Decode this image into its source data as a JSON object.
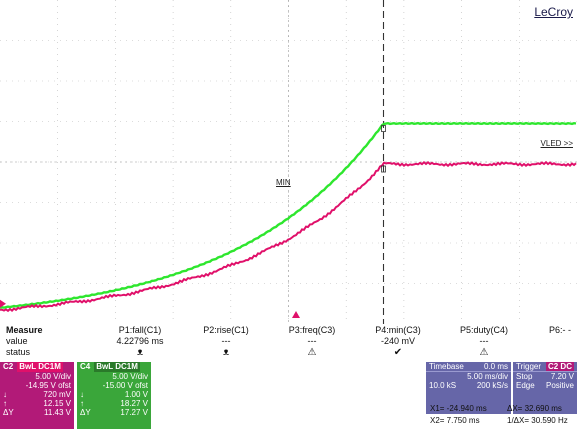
{
  "brand": "LeCroy",
  "annotations": {
    "vled_label": "VLED >>",
    "min_label": "MIN"
  },
  "colors": {
    "c1_green": "#2ee62e",
    "c2_magenta": "#e0106a",
    "c2_panel": "#b21a78",
    "c4_panel": "#3aa63a",
    "timebase_panel": "#6666a8",
    "grid": "#b9b9b9"
  },
  "traces": [
    {
      "channel": "C1",
      "color": "#2ee62e",
      "shape": "rising exponential to clamp then flat",
      "start_level_div": -3.6,
      "end_level_div": 0.95
    },
    {
      "channel": "C2",
      "color": "#e0106a",
      "shape": "rising exponential to clamp then flat",
      "start_level_div": -3.65,
      "end_level_div": -0.05
    }
  ],
  "measure": {
    "row_labels": [
      "Measure",
      "value",
      "status"
    ],
    "columns": [
      {
        "param": "P1:fall(C1)",
        "value": "4.22796 ms",
        "status": "ᴥ"
      },
      {
        "param": "P2:rise(C1)",
        "value": "---",
        "status": "ᴥ"
      },
      {
        "param": "P3:freq(C3)",
        "value": "---",
        "status": "⚠"
      },
      {
        "param": "P4:min(C3)",
        "value": "-240 mV",
        "status": "✔"
      },
      {
        "param": "P5:duty(C4)",
        "value": "---",
        "status": "⚠"
      },
      {
        "param": "P6:- -",
        "value": "",
        "status": ""
      }
    ]
  },
  "channels": {
    "c2": {
      "name": "C2",
      "tag": "BwL DC1M",
      "vdiv": "5.00 V/div",
      "offset": "-14.95 V ofst",
      "r1": "720 mV",
      "r2": "12.15 V",
      "r3k": "ΔY",
      "r3": "11.43 V"
    },
    "c4": {
      "name": "C4",
      "tag": "BwL DC1M",
      "vdiv": "5.00 V/div",
      "offset": "-15.00 V ofst",
      "r1": "1.00 V",
      "r2": "18.27 V",
      "r3k": "ΔY",
      "r3": "17.27 V"
    }
  },
  "timebase": {
    "label": "Timebase",
    "delay": "0.0 ms",
    "tdiv": "5.00 ms/div",
    "samples": "10.0 kS",
    "rate": "200 kS/s"
  },
  "trigger": {
    "label": "Trigger",
    "ch": "C2 DC",
    "mode_k": "Stop",
    "level": "7.20 V",
    "type_k": "Edge",
    "slope": "Positive"
  },
  "cursors": {
    "x1": "X1= -24.940 ms",
    "dx": "ΔX= 32.690 ms",
    "x2": "X2= 7.750 ms",
    "inv": "1/ΔX= 30.590 Hz"
  }
}
